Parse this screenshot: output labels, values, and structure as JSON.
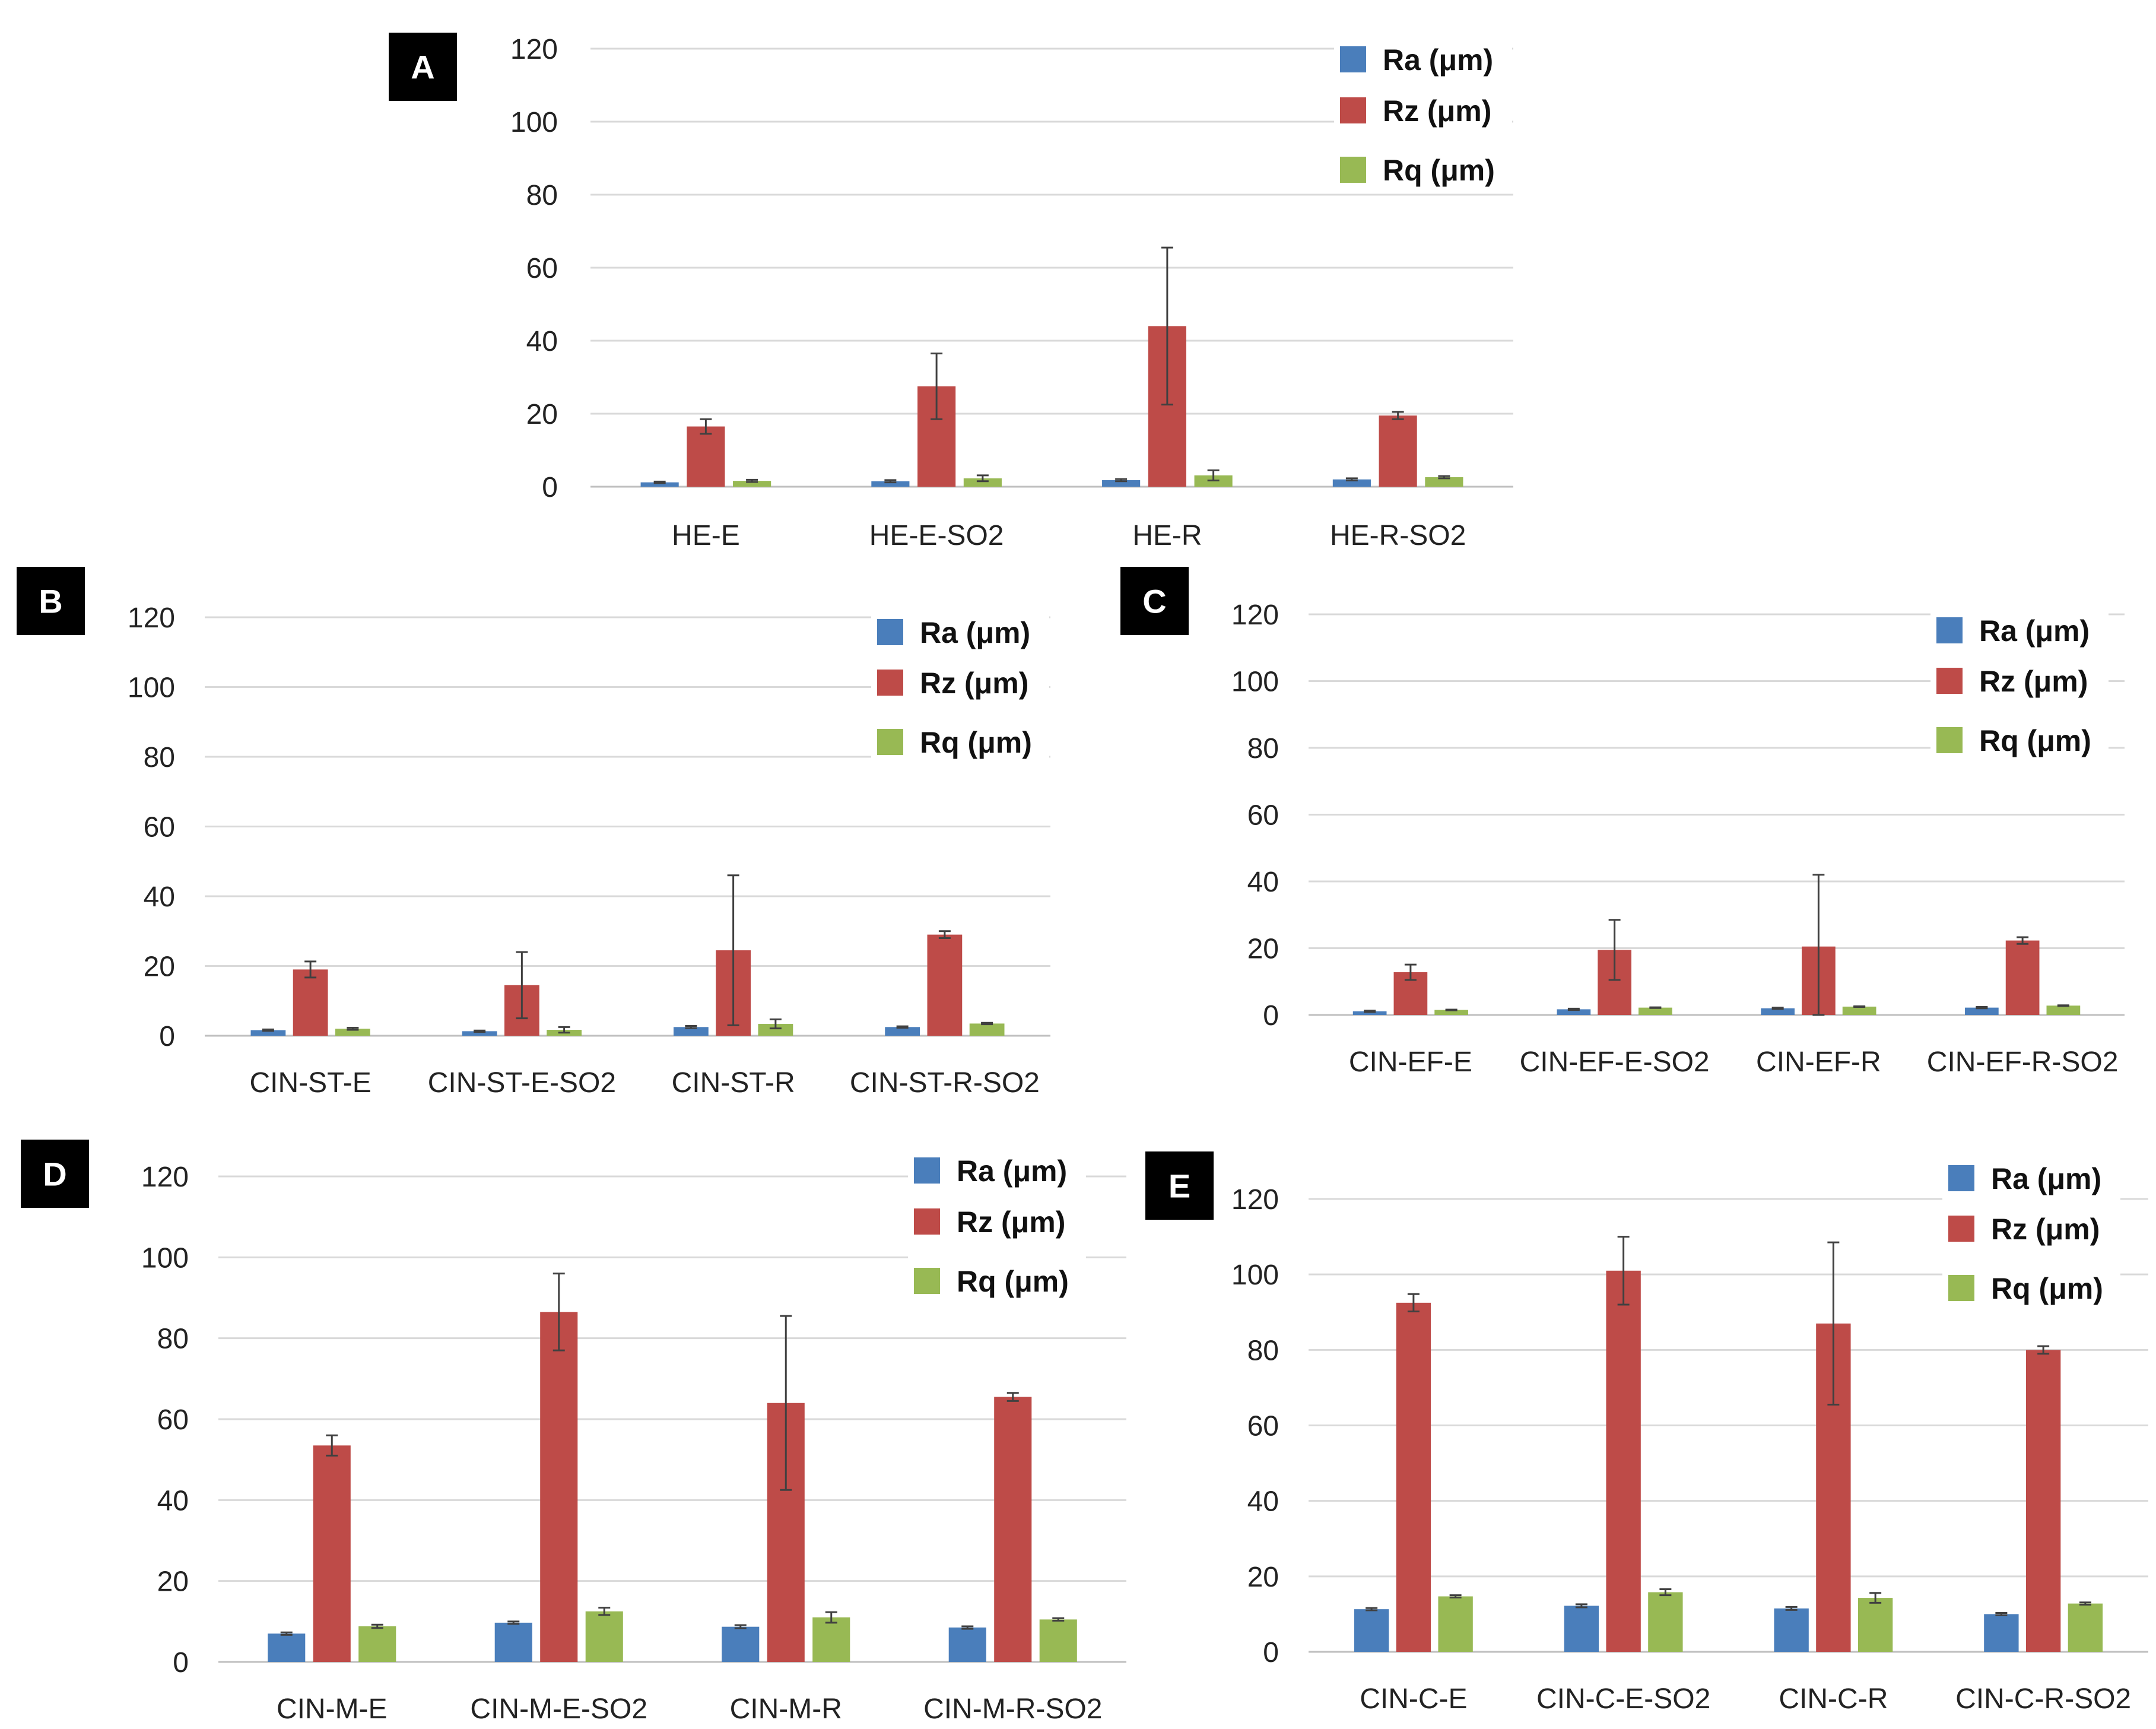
{
  "colors": {
    "Ra": "#4a7ebb",
    "Rz": "#be4b48",
    "Rq": "#98b954",
    "grid": "#d9d9d9",
    "error": "#404040"
  },
  "chart_data": [
    {
      "type": "bar",
      "label": "A",
      "ylim": [
        0,
        120
      ],
      "yticks": [
        0,
        20,
        40,
        60,
        80,
        100,
        120
      ],
      "categories": [
        "HE-E",
        "HE-E-SO2",
        "HE-R",
        "HE-R-SO2"
      ],
      "series": [
        {
          "name": "Ra (μm)",
          "key": "Ra",
          "values": [
            1.2,
            1.5,
            1.8,
            2.0
          ],
          "errors": [
            0.2,
            0.3,
            0.3,
            0.3
          ]
        },
        {
          "name": "Rz (μm)",
          "key": "Rz",
          "values": [
            16.5,
            27.5,
            44.0,
            19.5
          ],
          "errors": [
            2.0,
            9.0,
            21.5,
            1.0
          ]
        },
        {
          "name": "Rq (μm)",
          "key": "Rq",
          "values": [
            1.6,
            2.3,
            3.1,
            2.6
          ],
          "errors": [
            0.3,
            0.8,
            1.4,
            0.3
          ]
        }
      ]
    },
    {
      "type": "bar",
      "label": "B",
      "ylim": [
        0,
        120
      ],
      "yticks": [
        0,
        20,
        40,
        60,
        80,
        100,
        120
      ],
      "categories": [
        "CIN-ST-E",
        "CIN-ST-E-SO2",
        "CIN-ST-R",
        "CIN-ST-R-SO2"
      ],
      "series": [
        {
          "name": "Ra (μm)",
          "key": "Ra",
          "values": [
            1.6,
            1.3,
            2.5,
            2.5
          ],
          "errors": [
            0.2,
            0.2,
            0.3,
            0.2
          ]
        },
        {
          "name": "Rz (μm)",
          "key": "Rz",
          "values": [
            19.0,
            14.5,
            24.5,
            29.0
          ],
          "errors": [
            2.3,
            9.5,
            21.5,
            1.0
          ]
        },
        {
          "name": "Rq (μm)",
          "key": "Rq",
          "values": [
            2.0,
            1.7,
            3.4,
            3.5
          ],
          "errors": [
            0.3,
            0.8,
            1.3,
            0.2
          ]
        }
      ]
    },
    {
      "type": "bar",
      "label": "C",
      "ylim": [
        0,
        120
      ],
      "yticks": [
        0,
        20,
        40,
        60,
        80,
        100,
        120
      ],
      "categories": [
        "CIN-EF-E",
        "CIN-EF-E-SO2",
        "CIN-EF-R",
        "CIN-EF-R-SO2"
      ],
      "series": [
        {
          "name": "Ra (μm)",
          "key": "Ra",
          "values": [
            1.1,
            1.7,
            2.0,
            2.2
          ],
          "errors": [
            0.2,
            0.2,
            0.2,
            0.2
          ]
        },
        {
          "name": "Rz (μm)",
          "key": "Rz",
          "values": [
            12.8,
            19.5,
            20.5,
            22.3
          ],
          "errors": [
            2.3,
            9.0,
            21.5,
            1.0
          ]
        },
        {
          "name": "Rq (μm)",
          "key": "Rq",
          "values": [
            1.5,
            2.2,
            2.5,
            2.8
          ],
          "errors": [
            0.1,
            0.1,
            0.1,
            0.1
          ]
        }
      ]
    },
    {
      "type": "bar",
      "label": "D",
      "ylim": [
        0,
        120
      ],
      "yticks": [
        0,
        20,
        40,
        60,
        80,
        100,
        120
      ],
      "categories": [
        "CIN-M-E",
        "CIN-M-E-SO2",
        "CIN-M-R",
        "CIN-M-R-SO2"
      ],
      "series": [
        {
          "name": "Ra (μm)",
          "key": "Ra",
          "values": [
            7.0,
            9.7,
            8.7,
            8.5
          ],
          "errors": [
            0.3,
            0.3,
            0.4,
            0.3
          ]
        },
        {
          "name": "Rz (μm)",
          "key": "Rz",
          "values": [
            53.5,
            86.5,
            64.0,
            65.5
          ],
          "errors": [
            2.5,
            9.5,
            21.5,
            1.0
          ]
        },
        {
          "name": "Rq (μm)",
          "key": "Rq",
          "values": [
            8.8,
            12.5,
            11.0,
            10.5
          ],
          "errors": [
            0.4,
            0.9,
            1.3,
            0.3
          ]
        }
      ]
    },
    {
      "type": "bar",
      "label": "E",
      "ylim": [
        0,
        120
      ],
      "yticks": [
        0,
        20,
        40,
        60,
        80,
        100,
        120
      ],
      "categories": [
        "CIN-C-E",
        "CIN-C-E-SO2",
        "CIN-C-R",
        "CIN-C-R-SO2"
      ],
      "series": [
        {
          "name": "Ra (μm)",
          "key": "Ra",
          "values": [
            11.3,
            12.2,
            11.5,
            10.0
          ],
          "errors": [
            0.3,
            0.4,
            0.4,
            0.3
          ]
        },
        {
          "name": "Rz (μm)",
          "key": "Rz",
          "values": [
            92.5,
            101.0,
            87.0,
            80.0
          ],
          "errors": [
            2.3,
            9.0,
            21.5,
            1.0
          ]
        },
        {
          "name": "Rq (μm)",
          "key": "Rq",
          "values": [
            14.7,
            15.8,
            14.3,
            12.8
          ],
          "errors": [
            0.3,
            0.8,
            1.3,
            0.3
          ]
        }
      ]
    }
  ]
}
